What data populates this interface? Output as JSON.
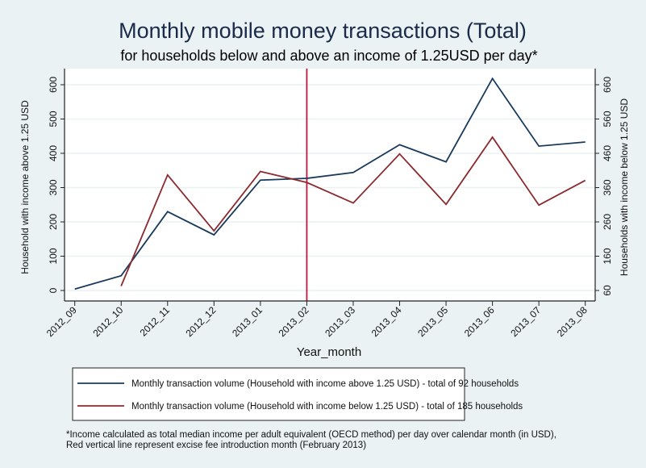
{
  "chart_data": {
    "type": "line",
    "title": "Monthly mobile money transactions (Total)",
    "subtitle": "for households below and above an income of 1.25USD per day*",
    "xlabel": "Year_month",
    "ylabel_left": "Household with income above 1.25 USD",
    "ylabel_right": "Households with income below 1.25 USD",
    "categories": [
      "2012_09",
      "2012_10",
      "2012_11",
      "2012_12",
      "2013_01",
      "2013_02",
      "2013_03",
      "2013_04",
      "2013_05",
      "2013_06",
      "2013_07",
      "2013_08"
    ],
    "ylim_left": [
      0,
      600
    ],
    "yticks_left": [
      0,
      100,
      200,
      300,
      400,
      500,
      600
    ],
    "ylim_right": [
      60,
      660
    ],
    "yticks_right": [
      60,
      160,
      260,
      360,
      460,
      560,
      660
    ],
    "grid": true,
    "series": [
      {
        "name": "Monthly transaction volume (Household with income above 1.25 USD) - total of 92 households",
        "axis": "left",
        "color": "#1a3a5c",
        "values": [
          4,
          43,
          230,
          162,
          322,
          327,
          344,
          425,
          375,
          618,
          421,
          433
        ]
      },
      {
        "name": "Monthly transaction volume (Household with income below 1.25 USD) - total of 185 households",
        "axis": "right",
        "color": "#8b2a2f",
        "values": [
          null,
          73,
          397,
          234,
          407,
          375,
          315,
          458,
          311,
          507,
          309,
          381
        ]
      }
    ],
    "vertical_line": {
      "category": "2013_02",
      "color": "#c0163a"
    },
    "legend_placement": "bottom",
    "footnote": [
      "*Income calculated as total median income per adult equivalent (OECD method) per day over calendar month (in USD),",
      "Red vertical line represent excise fee introduction month (February 2013)"
    ]
  }
}
